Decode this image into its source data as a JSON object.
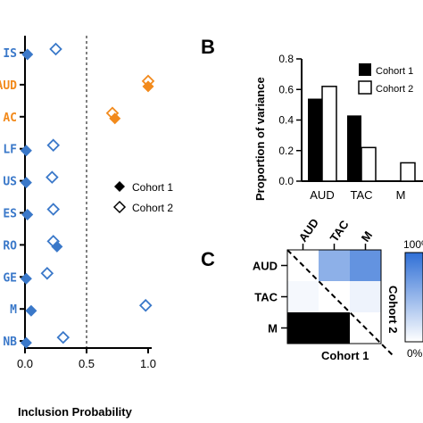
{
  "colors": {
    "blue": "#3a78c9",
    "orange": "#f28a1c",
    "black": "#000000",
    "light_blue": "#e8f0fa",
    "mid_blue": "#7aa6e6",
    "dark_blue": "#3a74d6"
  },
  "panel_a": {
    "y_labels": [
      {
        "text": "IS",
        "color": "#3a78c9"
      },
      {
        "text": "AUD",
        "color": "#f28a1c"
      },
      {
        "text": "AC",
        "color": "#f28a1c"
      },
      {
        "text": "LF",
        "color": "#3a78c9"
      },
      {
        "text": "US",
        "color": "#3a78c9"
      },
      {
        "text": "ES",
        "color": "#3a78c9"
      },
      {
        "text": "RO",
        "color": "#3a78c9"
      },
      {
        "text": "GE",
        "color": "#3a78c9"
      },
      {
        "text": "M",
        "color": "#3a78c9"
      },
      {
        "text": "NB",
        "color": "#3a78c9"
      }
    ],
    "x_ticks": [
      "0.0",
      "0.5",
      "1.0"
    ],
    "xlabel": "Inclusion Probability",
    "legend": [
      "Cohort 1",
      "Cohort 2"
    ]
  },
  "panel_b": {
    "letter": "B",
    "ylabel": "Proportion of variance",
    "y_ticks": [
      "0.0",
      "0.2",
      "0.4",
      "0.6",
      "0.8"
    ],
    "legend": [
      "Cohort 1",
      "Cohort 2"
    ]
  },
  "panel_c": {
    "letter": "C",
    "row_labels": [
      "AUD",
      "TAC",
      "M"
    ],
    "col_labels": [
      "AUD",
      "TAC",
      "M"
    ],
    "xlabel": "Cohort 1",
    "ylabel": "Cohort 2",
    "scale_top": "100%",
    "scale_bottom": "0%"
  },
  "chart_data": [
    {
      "type": "scatter",
      "xlabel": "Inclusion Probability",
      "xlim": [
        0,
        1
      ],
      "categories": [
        "IS",
        "AUD",
        "AC",
        "LF",
        "US",
        "ES",
        "RO",
        "GE",
        "M",
        "NB"
      ],
      "series": [
        {
          "name": "Cohort 1",
          "marker": "filled-diamond",
          "x": [
            0.02,
            1.0,
            0.73,
            0.01,
            0.01,
            0.02,
            0.26,
            0.01,
            0.05,
            0.01
          ]
        },
        {
          "name": "Cohort 2",
          "marker": "open-diamond",
          "x": [
            0.25,
            1.0,
            0.71,
            0.23,
            0.22,
            0.23,
            0.23,
            0.18,
            0.98,
            0.31
          ]
        }
      ],
      "reference_line_x": 0.5
    },
    {
      "type": "bar",
      "ylabel": "Proportion of variance",
      "ylim": [
        0,
        0.8
      ],
      "categories": [
        "AUD",
        "TAC",
        "M"
      ],
      "series": [
        {
          "name": "Cohort 1",
          "values": [
            0.54,
            0.43,
            0.0
          ]
        },
        {
          "name": "Cohort 2",
          "values": [
            0.62,
            0.22,
            0.12
          ]
        }
      ],
      "legend_position": "top-right"
    },
    {
      "type": "heatmap",
      "xlabel": "Cohort 1",
      "ylabel": "Cohort 2",
      "rows": [
        "AUD",
        "TAC",
        "M"
      ],
      "cols": [
        "AUD",
        "TAC",
        "M"
      ],
      "upper_triangle_cohort2": [
        [
          null,
          0.55,
          0.75
        ],
        [
          null,
          null,
          0.08
        ],
        [
          null,
          null,
          null
        ]
      ],
      "lower_triangle_cohort1": [
        [
          null,
          null,
          null
        ],
        [
          0.05,
          null,
          null
        ],
        [
          1.0,
          1.0,
          null
        ]
      ],
      "colorbar": [
        "0%",
        "100%"
      ]
    }
  ]
}
